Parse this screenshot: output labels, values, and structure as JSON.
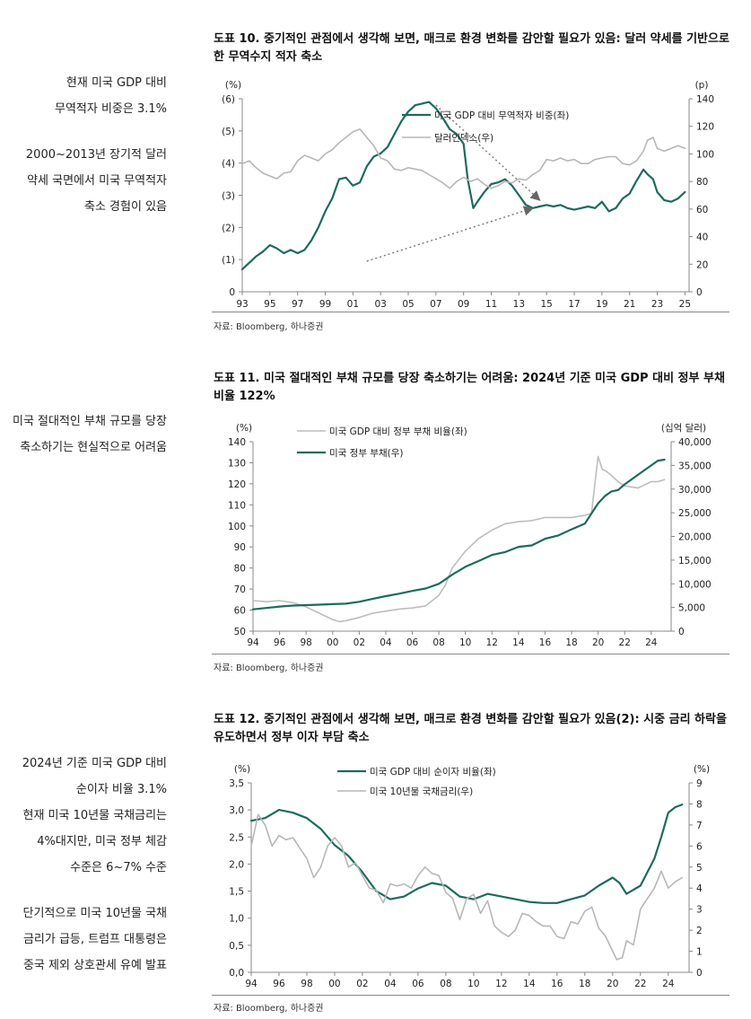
{
  "side_notes": [
    {
      "id": "n1",
      "top": 78,
      "lines": [
        [
          "현재 미국 GDP 대비",
          "무역적자 비중은 3.1%"
        ],
        [
          "2000~2013년 장기적 달러",
          "약세 국면에서 미국 무역적자",
          "축소 경험이 있음"
        ]
      ]
    },
    {
      "id": "n2",
      "top": 455,
      "lines": [
        [
          "미국 절대적인 부채 규모를 당장",
          "축소하기는 현실적으로 어려움"
        ]
      ]
    },
    {
      "id": "n3",
      "top": 836,
      "lines": [
        [
          "2024년 기준 미국 GDP 대비",
          "순이자 비율 3.1%",
          "현재 미국 10년물 국채금리는",
          "4%대지만, 미국 정부 체감",
          "수준은 6~7% 수준"
        ],
        [
          "단기적으로 미국 10년물 국채",
          "금리가 급등, 트럼프 대통령은",
          "중국 제외 상호관세 유예 발표"
        ]
      ]
    }
  ],
  "figures": [
    {
      "title": "도표 10. 중기적인 관점에서 생각해 보면, 매크로 환경 변화를 감안할 필요가 있음: 달러 약세를 기반으로 한 무역수지 적자 축소",
      "source": "자료: Bloomberg, 하나증권"
    },
    {
      "title": "도표 11. 미국 절대적인 부채 규모를 당장 축소하기는 어려움: 2024년 기준 미국 GDP 대비 정부 부채 비율 122%",
      "source": "자료: Bloomberg, 하나증권"
    },
    {
      "title": "도표 12. 중기적인 관점에서 생각해 보면, 매크로 환경 변화를 감안할 필요가 있음(2): 시중 금리 하락을 유도하면서 정부 이자 부담 축소",
      "source": "자료: Bloomberg, 하나증권"
    }
  ],
  "chart_data": [
    {
      "type": "line",
      "left_unit": "(%)",
      "right_unit": "(p)",
      "x_ticks": [
        "93",
        "95",
        "97",
        "99",
        "01",
        "03",
        "05",
        "07",
        "09",
        "11",
        "13",
        "15",
        "17",
        "19",
        "21",
        "23",
        "25"
      ],
      "xlim": [
        1993,
        2025.3
      ],
      "left_ylim": [
        0,
        -6
      ],
      "left_ticks": [
        "0",
        "(1)",
        "(2)",
        "(3)",
        "(4)",
        "(5)",
        "(6)"
      ],
      "left_tick_values": [
        0,
        -1,
        -2,
        -3,
        -4,
        -5,
        -6
      ],
      "right_ylim": [
        0,
        140
      ],
      "right_ticks": [
        0,
        20,
        40,
        60,
        80,
        100,
        120,
        140
      ],
      "series": [
        {
          "name": "미국 GDP 대비 무역적자 비중(좌)",
          "axis": "left",
          "color": "#1d6b5e",
          "width": 2.2,
          "x": [
            1993,
            1993.5,
            1994,
            1994.5,
            1995,
            1995.5,
            1996,
            1996.5,
            1997,
            1997.5,
            1998,
            1998.5,
            1999,
            1999.5,
            2000,
            2000.5,
            2001,
            2001.5,
            2002,
            2002.5,
            2003,
            2003.5,
            2004,
            2004.5,
            2005,
            2005.5,
            2006,
            2006.5,
            2007,
            2007.5,
            2008,
            2008.5,
            2009,
            2009.3,
            2009.7,
            2010,
            2010.5,
            2011,
            2011.5,
            2012,
            2012.5,
            2013,
            2013.5,
            2014,
            2014.5,
            2015,
            2015.5,
            2016,
            2016.5,
            2017,
            2017.5,
            2018,
            2018.5,
            2019,
            2019.5,
            2020,
            2020.5,
            2021,
            2021.5,
            2022,
            2022.3,
            2022.7,
            2023,
            2023.5,
            2024,
            2024.5,
            2025
          ],
          "y": [
            -0.7,
            -0.9,
            -1.1,
            -1.25,
            -1.45,
            -1.35,
            -1.2,
            -1.3,
            -1.2,
            -1.3,
            -1.6,
            -2.0,
            -2.5,
            -2.9,
            -3.5,
            -3.55,
            -3.3,
            -3.4,
            -3.9,
            -4.2,
            -4.3,
            -4.5,
            -4.9,
            -5.3,
            -5.6,
            -5.8,
            -5.85,
            -5.9,
            -5.7,
            -5.4,
            -5.05,
            -4.9,
            -4.6,
            -3.5,
            -2.6,
            -2.8,
            -3.1,
            -3.35,
            -3.4,
            -3.5,
            -3.3,
            -3.0,
            -2.7,
            -2.6,
            -2.65,
            -2.7,
            -2.65,
            -2.7,
            -2.6,
            -2.55,
            -2.6,
            -2.65,
            -2.6,
            -2.8,
            -2.5,
            -2.6,
            -2.9,
            -3.05,
            -3.45,
            -3.8,
            -3.65,
            -3.5,
            -3.1,
            -2.85,
            -2.8,
            -2.9,
            -3.1
          ]
        },
        {
          "name": "달러인덱스(우)",
          "axis": "right",
          "color": "#b7b7b7",
          "width": 1.6,
          "x": [
            1993,
            1993.5,
            1994,
            1994.5,
            1995,
            1995.5,
            1996,
            1996.5,
            1997,
            1997.5,
            1998,
            1998.5,
            1999,
            1999.5,
            2000,
            2000.5,
            2001,
            2001.5,
            2002,
            2002.5,
            2003,
            2003.5,
            2004,
            2004.5,
            2005,
            2005.5,
            2006,
            2006.5,
            2007,
            2007.5,
            2008,
            2008.5,
            2009,
            2009.5,
            2010,
            2010.5,
            2011,
            2011.5,
            2012,
            2012.5,
            2013,
            2013.5,
            2014,
            2014.5,
            2015,
            2015.5,
            2016,
            2016.5,
            2017,
            2017.5,
            2018,
            2018.5,
            2019,
            2019.5,
            2020,
            2020.5,
            2021,
            2021.5,
            2022,
            2022.3,
            2022.7,
            2023,
            2023.5,
            2024,
            2024.5,
            2025
          ],
          "y": [
            93,
            95,
            90,
            86,
            84,
            82,
            86,
            87,
            95,
            99,
            97,
            95,
            100,
            103,
            108,
            112,
            116,
            118,
            112,
            106,
            97,
            95,
            89,
            88,
            90,
            89,
            88,
            85,
            82,
            79,
            75,
            80,
            83,
            80,
            82,
            78,
            75,
            77,
            80,
            79,
            82,
            81,
            85,
            88,
            96,
            95,
            97,
            95,
            96,
            93,
            93,
            96,
            97,
            98,
            98,
            93,
            92,
            95,
            102,
            110,
            112,
            104,
            102,
            104,
            106,
            104
          ]
        }
      ],
      "annotations": [
        {
          "type": "arrow",
          "from": [
            2002,
            -0.95
          ],
          "to": [
            2014,
            -2.6
          ]
        },
        {
          "type": "arrow",
          "from": [
            2007,
            -5.8
          ],
          "to": [
            2014.5,
            -2.85
          ]
        }
      ]
    },
    {
      "type": "line",
      "left_unit": "(%)",
      "right_unit": "(십억 달러)",
      "x_ticks": [
        "94",
        "96",
        "98",
        "00",
        "02",
        "04",
        "06",
        "08",
        "10",
        "12",
        "14",
        "16",
        "18",
        "20",
        "22",
        "24"
      ],
      "xlim": [
        1994,
        2025.5
      ],
      "left_ylim": [
        50,
        140
      ],
      "left_ticks": [
        50,
        60,
        70,
        80,
        90,
        100,
        110,
        120,
        130,
        140
      ],
      "right_ylim": [
        0,
        40000
      ],
      "right_ticks": [
        "0",
        "5,000",
        "10,000",
        "15,000",
        "20,000",
        "25,000",
        "30,000",
        "35,000",
        "40,000"
      ],
      "right_tick_values": [
        0,
        5000,
        10000,
        15000,
        20000,
        25000,
        30000,
        35000,
        40000
      ],
      "series": [
        {
          "name": "미국 GDP 대비 정부 부채 비율(좌)",
          "axis": "left",
          "color": "#bdbdbd",
          "width": 1.6,
          "x": [
            1994,
            1995,
            1996,
            1997,
            1998,
            1999,
            2000,
            2000.5,
            2001,
            2002,
            2003,
            2004,
            2005,
            2006,
            2007,
            2008,
            2008.5,
            2009,
            2009.5,
            2010,
            2011,
            2012,
            2013,
            2014,
            2015,
            2016,
            2017,
            2018,
            2019,
            2019.5,
            2020,
            2020.3,
            2020.6,
            2021,
            2021.5,
            2022,
            2023,
            2024,
            2024.5,
            2025
          ],
          "y": [
            64.5,
            64,
            64.5,
            63.5,
            61.5,
            58.5,
            55.5,
            54.5,
            55,
            56.5,
            58.5,
            59.5,
            60.5,
            61,
            62,
            67,
            72,
            80,
            84,
            88,
            94,
            98,
            101,
            102,
            102.5,
            104,
            104,
            104,
            105,
            106,
            133,
            127,
            126,
            124,
            121,
            119,
            118,
            121,
            121,
            122
          ]
        },
        {
          "name": "미국 정부 부채(우)",
          "axis": "right",
          "color": "#1d6b5e",
          "width": 2.2,
          "x": [
            1994,
            1995,
            1996,
            1997,
            1998,
            1999,
            2000,
            2001,
            2002,
            2003,
            2004,
            2005,
            2006,
            2007,
            2008,
            2009,
            2010,
            2011,
            2012,
            2013,
            2014,
            2015,
            2016,
            2017,
            2018,
            2019,
            2020,
            2020.5,
            2021,
            2021.5,
            2022,
            2023,
            2024,
            2024.5,
            2025
          ],
          "y": [
            4600,
            4900,
            5200,
            5400,
            5500,
            5600,
            5700,
            5800,
            6200,
            6800,
            7400,
            7900,
            8500,
            9000,
            10000,
            11900,
            13600,
            14800,
            16100,
            16700,
            17800,
            18100,
            19500,
            20200,
            21500,
            22700,
            27000,
            28500,
            29500,
            29800,
            31000,
            33000,
            35000,
            36000,
            36200
          ]
        }
      ]
    },
    {
      "type": "line",
      "left_unit": "(%)",
      "right_unit": "(%)",
      "x_ticks": [
        "94",
        "96",
        "98",
        "00",
        "02",
        "04",
        "06",
        "08",
        "10",
        "12",
        "14",
        "16",
        "18",
        "20",
        "22",
        "24"
      ],
      "xlim": [
        1994,
        2025.5
      ],
      "left_ylim": [
        0,
        3.5
      ],
      "left_ticks": [
        "0,0",
        "0,5",
        "1,0",
        "1,5",
        "2,0",
        "2,5",
        "3,0",
        "3,5"
      ],
      "left_tick_values": [
        0,
        0.5,
        1,
        1.5,
        2,
        2.5,
        3,
        3.5
      ],
      "right_ylim": [
        0,
        9
      ],
      "right_ticks": [
        0,
        1,
        2,
        3,
        4,
        5,
        6,
        7,
        8,
        9
      ],
      "series": [
        {
          "name": "미국 GDP 대비 순이자 비율(좌)",
          "axis": "left",
          "color": "#1d6b5e",
          "width": 2.2,
          "x": [
            1994,
            1995,
            1996,
            1997,
            1998,
            1999,
            2000,
            2001,
            2002,
            2003,
            2004,
            2005,
            2006,
            2007,
            2008,
            2009,
            2010,
            2011,
            2012,
            2013,
            2014,
            2015,
            2016,
            2017,
            2018,
            2019,
            2020,
            2020.5,
            2021,
            2022,
            2023,
            2023.5,
            2024,
            2024.5,
            2025
          ],
          "y": [
            2.8,
            2.85,
            3.0,
            2.95,
            2.85,
            2.65,
            2.35,
            2.15,
            1.85,
            1.5,
            1.35,
            1.4,
            1.55,
            1.65,
            1.6,
            1.4,
            1.35,
            1.45,
            1.4,
            1.35,
            1.3,
            1.28,
            1.28,
            1.35,
            1.42,
            1.6,
            1.75,
            1.65,
            1.45,
            1.6,
            2.1,
            2.5,
            2.95,
            3.05,
            3.1
          ]
        },
        {
          "name": "미국 10년물 국채금리(우)",
          "axis": "right",
          "color": "#b7b7b7",
          "width": 1.6,
          "x": [
            1994,
            1994.5,
            1995,
            1995.5,
            1996,
            1996.5,
            1997,
            1997.5,
            1998,
            1998.5,
            1999,
            1999.5,
            2000,
            2000.5,
            2001,
            2001.5,
            2002,
            2002.5,
            2003,
            2003.5,
            2004,
            2004.5,
            2005,
            2005.5,
            2006,
            2006.5,
            2007,
            2007.5,
            2008,
            2008.5,
            2009,
            2009.5,
            2010,
            2010.5,
            2011,
            2011.5,
            2012,
            2012.5,
            2013,
            2013.5,
            2014,
            2014.5,
            2015,
            2015.5,
            2016,
            2016.5,
            2017,
            2017.5,
            2018,
            2018.5,
            2019,
            2019.5,
            2020,
            2020.3,
            2020.7,
            2021,
            2021.5,
            2022,
            2022.5,
            2023,
            2023.5,
            2024,
            2024.5,
            2025
          ],
          "y": [
            6,
            7.5,
            7,
            6,
            6.5,
            6.3,
            6.4,
            5.9,
            5.4,
            4.5,
            5,
            6,
            6.4,
            6.0,
            5,
            5.2,
            4.6,
            4,
            3.9,
            3.3,
            4.2,
            4.1,
            4.2,
            4.0,
            4.6,
            5,
            4.7,
            4.6,
            3.8,
            3.5,
            2.5,
            3.5,
            3.7,
            2.8,
            3.4,
            2.2,
            1.9,
            1.7,
            2.0,
            2.8,
            2.7,
            2.4,
            2.2,
            2.2,
            1.7,
            1.6,
            2.4,
            2.3,
            2.9,
            3.1,
            2.1,
            1.7,
            1.0,
            0.6,
            0.7,
            1.5,
            1.3,
            3.0,
            3.5,
            4.0,
            4.8,
            4.0,
            4.3,
            4.5
          ]
        }
      ]
    }
  ]
}
